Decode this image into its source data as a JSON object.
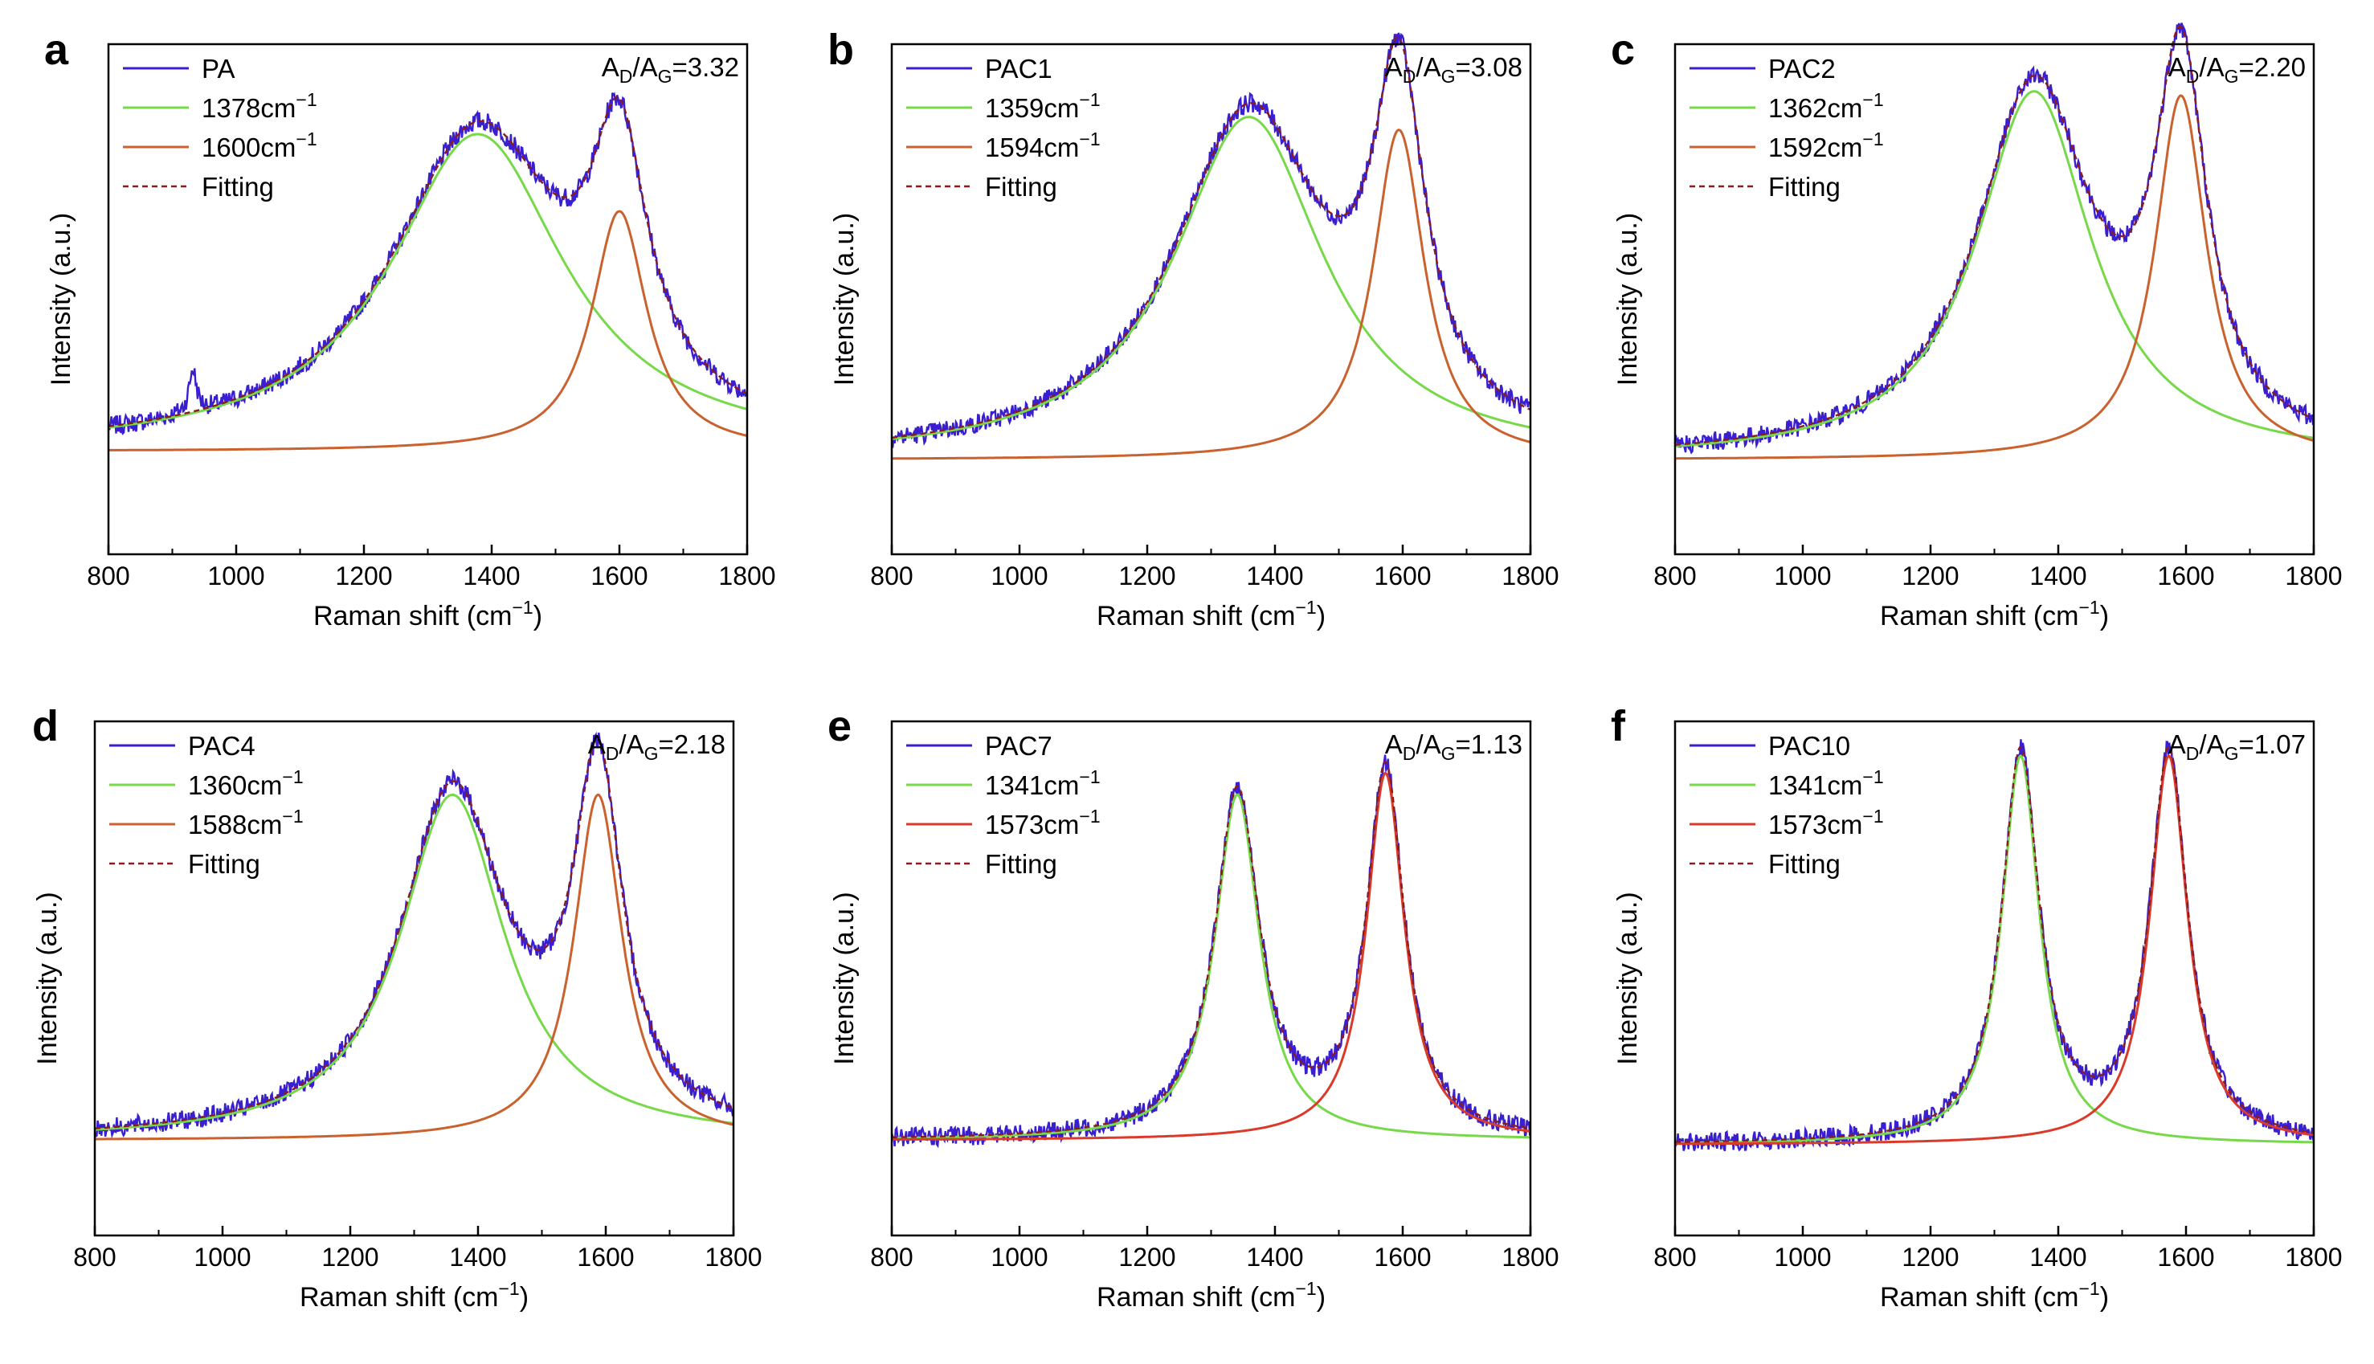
{
  "figure": {
    "x_axis_label": "Raman shift (cm",
    "x_axis_unit_exp": "−1",
    "x_axis_label_close": ")",
    "y_axis_label": "Intensity (a.u.)",
    "ratio_A": "A",
    "ratio_D": "D",
    "ratio_G": "G",
    "ratio_slash": "/",
    "legend_fitting": "Fitting",
    "unit_cm": "cm",
    "colors": {
      "raw": "#3a1fd0",
      "D": "#77d94a",
      "G": "#c9622f",
      "G_bright": "#d93a2a",
      "fit": "#8b1c1c"
    }
  },
  "chart_data": [
    {
      "type": "line",
      "panel": "a",
      "title": "",
      "xlabel": "Raman shift (cm−1)",
      "ylabel": "Intensity (a.u.)",
      "xlim": [
        800,
        1800
      ],
      "xticks": [
        800,
        1000,
        1200,
        1400,
        1600,
        1800
      ],
      "xtick_labels": [
        "800",
        "1000",
        "1200",
        "1400",
        "1600",
        "1800"
      ],
      "ratio_value": "=3.32",
      "series": [
        {
          "name": "PA",
          "kind": "raw"
        },
        {
          "name": "1378cm",
          "exp": "−1",
          "kind": "D",
          "center": 1378,
          "fwhm": 330,
          "amp": 0.74
        },
        {
          "name": "1600cm",
          "exp": "−1",
          "kind": "G",
          "center": 1600,
          "fwhm": 105,
          "amp": 0.56
        },
        {
          "name": "Fitting",
          "kind": "fit"
        }
      ],
      "baseline": 0.05,
      "spike": {
        "x": 932,
        "amp": 0.1
      }
    },
    {
      "type": "line",
      "panel": "b",
      "title": "",
      "xlabel": "Raman shift (cm−1)",
      "ylabel": "Intensity (a.u.)",
      "xlim": [
        800,
        1800
      ],
      "xticks": [
        800,
        1000,
        1200,
        1400,
        1600,
        1800
      ],
      "xtick_labels": [
        "800",
        "1000",
        "1200",
        "1400",
        "1600",
        "1800"
      ],
      "ratio_value": "=3.08",
      "series": [
        {
          "name": "PAC1",
          "kind": "raw"
        },
        {
          "name": "1359cm",
          "exp": "−1",
          "kind": "D",
          "center": 1359,
          "fwhm": 285,
          "amp": 0.8
        },
        {
          "name": "1594cm",
          "exp": "−1",
          "kind": "G",
          "center": 1594,
          "fwhm": 98,
          "amp": 0.77
        },
        {
          "name": "Fitting",
          "kind": "fit"
        }
      ],
      "baseline": 0.03
    },
    {
      "type": "line",
      "panel": "c",
      "title": "",
      "xlabel": "Raman shift (cm−1)",
      "ylabel": "Intensity (a.u.)",
      "xlim": [
        800,
        1800
      ],
      "xticks": [
        800,
        1000,
        1200,
        1400,
        1600,
        1800
      ],
      "xtick_labels": [
        "800",
        "1000",
        "1200",
        "1400",
        "1600",
        "1800"
      ],
      "ratio_value": "=2.20",
      "series": [
        {
          "name": "PAC2",
          "kind": "raw"
        },
        {
          "name": "1362cm",
          "exp": "−1",
          "kind": "D",
          "center": 1362,
          "fwhm": 220,
          "amp": 0.86
        },
        {
          "name": "1592cm",
          "exp": "−1",
          "kind": "G",
          "center": 1592,
          "fwhm": 98,
          "amp": 0.85
        },
        {
          "name": "Fitting",
          "kind": "fit"
        }
      ],
      "baseline": 0.03
    },
    {
      "type": "line",
      "panel": "d",
      "title": "",
      "xlabel": "Raman shift (cm−1)",
      "ylabel": "Intensity (a.u.)",
      "xlim": [
        800,
        1800
      ],
      "xticks": [
        800,
        1000,
        1200,
        1400,
        1600,
        1800
      ],
      "xtick_labels": [
        "800",
        "1000",
        "1200",
        "1400",
        "1600",
        "1800"
      ],
      "ratio_value": "=2.18",
      "series": [
        {
          "name": "PAC4",
          "kind": "raw"
        },
        {
          "name": "1360cm",
          "exp": "−1",
          "kind": "D",
          "center": 1360,
          "fwhm": 200,
          "amp": 0.8
        },
        {
          "name": "1588cm",
          "exp": "−1",
          "kind": "G",
          "center": 1588,
          "fwhm": 92,
          "amp": 0.8
        },
        {
          "name": "Fitting",
          "kind": "fit"
        }
      ],
      "baseline": 0.03
    },
    {
      "type": "line",
      "panel": "e",
      "title": "",
      "xlabel": "Raman shift (cm−1)",
      "ylabel": "Intensity (a.u.)",
      "xlim": [
        800,
        1800
      ],
      "xticks": [
        800,
        1000,
        1200,
        1400,
        1600,
        1800
      ],
      "xtick_labels": [
        "800",
        "1000",
        "1200",
        "1400",
        "1600",
        "1800"
      ],
      "ratio_value": "=1.13",
      "series": [
        {
          "name": "PAC7",
          "kind": "raw"
        },
        {
          "name": "1341cm",
          "exp": "−1",
          "kind": "D",
          "center": 1341,
          "fwhm": 85,
          "amp": 0.8
        },
        {
          "name": "1573cm",
          "exp": "−1",
          "kind": "G",
          "center": 1573,
          "fwhm": 72,
          "amp": 0.85
        },
        {
          "name": "Fitting",
          "kind": "fit"
        }
      ],
      "baseline": 0.03
    },
    {
      "type": "line",
      "panel": "f",
      "title": "",
      "xlabel": "Raman shift (cm−1)",
      "ylabel": "Intensity (a.u.)",
      "xlim": [
        800,
        1800
      ],
      "xticks": [
        800,
        1000,
        1200,
        1400,
        1600,
        1800
      ],
      "xtick_labels": [
        "800",
        "1000",
        "1200",
        "1400",
        "1600",
        "1800"
      ],
      "ratio_value": "=1.07",
      "series": [
        {
          "name": "PAC10",
          "kind": "raw"
        },
        {
          "name": "1341cm",
          "exp": "−1",
          "kind": "D",
          "center": 1341,
          "fwhm": 72,
          "amp": 0.9
        },
        {
          "name": "1573cm",
          "exp": "−1",
          "kind": "G",
          "center": 1573,
          "fwhm": 72,
          "amp": 0.9
        },
        {
          "name": "Fitting",
          "kind": "fit"
        }
      ],
      "baseline": 0.02
    }
  ]
}
